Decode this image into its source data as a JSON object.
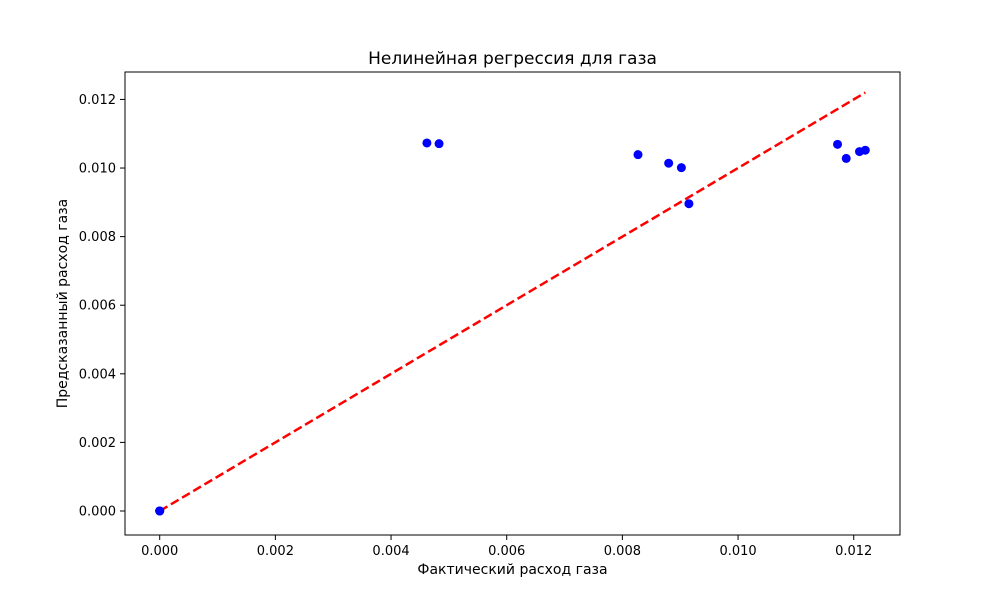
{
  "chart_data": {
    "type": "scatter",
    "title": "Нелинейная регрессия для газа",
    "xlabel": "Фактический расход газа",
    "ylabel": "Предсказанный расход газа",
    "xlim": [
      -0.0006,
      0.0128
    ],
    "ylim": [
      -0.0007,
      0.0128
    ],
    "xticks": [
      0.0,
      0.002,
      0.004,
      0.006,
      0.008,
      0.01,
      0.012
    ],
    "xtick_labels": [
      "0.000",
      "0.002",
      "0.004",
      "0.006",
      "0.008",
      "0.010",
      "0.012"
    ],
    "yticks": [
      0.0,
      0.002,
      0.004,
      0.006,
      0.008,
      0.01,
      0.012
    ],
    "ytick_labels": [
      "0.000",
      "0.002",
      "0.004",
      "0.006",
      "0.008",
      "0.010",
      "0.012"
    ],
    "grid": false,
    "series": [
      {
        "kind": "scatter",
        "color": "#0000ff",
        "points": [
          {
            "x": 0.0,
            "y": 0.0
          },
          {
            "x": 0.0,
            "y": 0.0
          },
          {
            "x": 0.0,
            "y": 0.0
          },
          {
            "x": 0.00462,
            "y": 0.01073
          },
          {
            "x": 0.00483,
            "y": 0.01071
          },
          {
            "x": 0.00827,
            "y": 0.01039
          },
          {
            "x": 0.0088,
            "y": 0.01014
          },
          {
            "x": 0.00902,
            "y": 0.01001
          },
          {
            "x": 0.00915,
            "y": 0.00896
          },
          {
            "x": 0.01172,
            "y": 0.01069
          },
          {
            "x": 0.01187,
            "y": 0.01028
          },
          {
            "x": 0.0121,
            "y": 0.01048
          },
          {
            "x": 0.0122,
            "y": 0.01052
          }
        ]
      },
      {
        "kind": "line",
        "style": "dashed",
        "color": "#ff0000",
        "points": [
          {
            "x": 0.0,
            "y": 0.0
          },
          {
            "x": 0.0122,
            "y": 0.0122
          }
        ]
      }
    ]
  }
}
